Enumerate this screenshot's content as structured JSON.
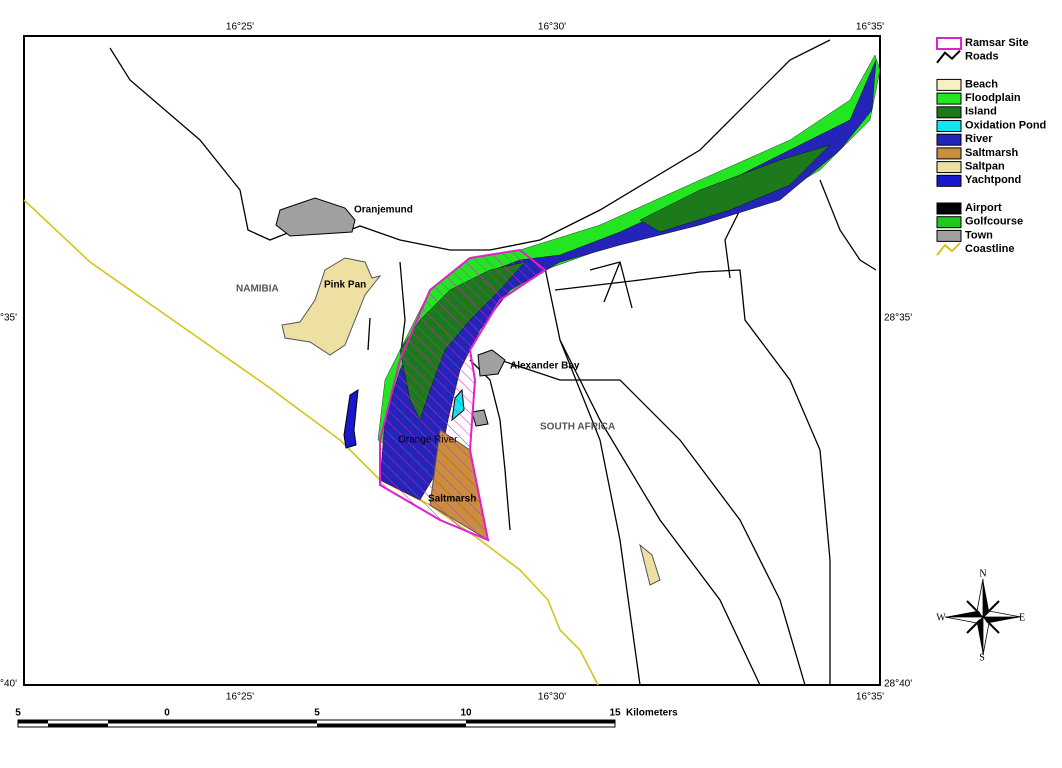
{
  "map": {
    "coordinates": {
      "top": [
        "16°25'",
        "16°30'",
        "16°35'"
      ],
      "bottom": [
        "16°25'",
        "16°30'",
        "16°35'"
      ],
      "left": [
        "°35'",
        "°40'"
      ],
      "right": [
        "28°35'",
        "28°40'"
      ]
    },
    "places": [
      "Oranjemund",
      "NAMIBIA",
      "Pink Pan",
      "Alexander Bay",
      "SOUTH AFRICA",
      "Orange River",
      "Saltmarsh"
    ],
    "legend": [
      [
        {
          "label": "Ramsar Site",
          "color": "#e020c8",
          "style": "outline"
        },
        {
          "label": "Roads",
          "color": "#000000",
          "style": "line"
        }
      ],
      [
        {
          "label": "Beach",
          "color": "#f6f0c2",
          "style": "fill"
        },
        {
          "label": "Floodplain",
          "color": "#22e622",
          "style": "fill"
        },
        {
          "label": "Island",
          "color": "#1c7a1c",
          "style": "fill"
        },
        {
          "label": "Oxidation Pond",
          "color": "#10e6f0",
          "style": "fill"
        },
        {
          "label": "River",
          "color": "#2424b8",
          "style": "fill"
        },
        {
          "label": "Saltmarsh",
          "color": "#c8903c",
          "style": "fill"
        },
        {
          "label": "Saltpan",
          "color": "#ede0a2",
          "style": "fill"
        },
        {
          "label": "Yachtpond",
          "color": "#1818d0",
          "style": "fill"
        }
      ],
      [
        {
          "label": "Airport",
          "color": "#000000",
          "style": "fill"
        },
        {
          "label": "Golfcourse",
          "color": "#22c822",
          "style": "fill"
        },
        {
          "label": "Town",
          "color": "#a0a0a0",
          "style": "fill"
        },
        {
          "label": "Coastline",
          "color": "#d4c41c",
          "style": "line"
        }
      ]
    ],
    "scale": {
      "ticks": [
        "5",
        "0",
        "5",
        "10",
        "15"
      ],
      "unit": "Kilometers"
    },
    "compass": {
      "north": "N",
      "east": "E",
      "south": "S",
      "west": "W"
    }
  }
}
